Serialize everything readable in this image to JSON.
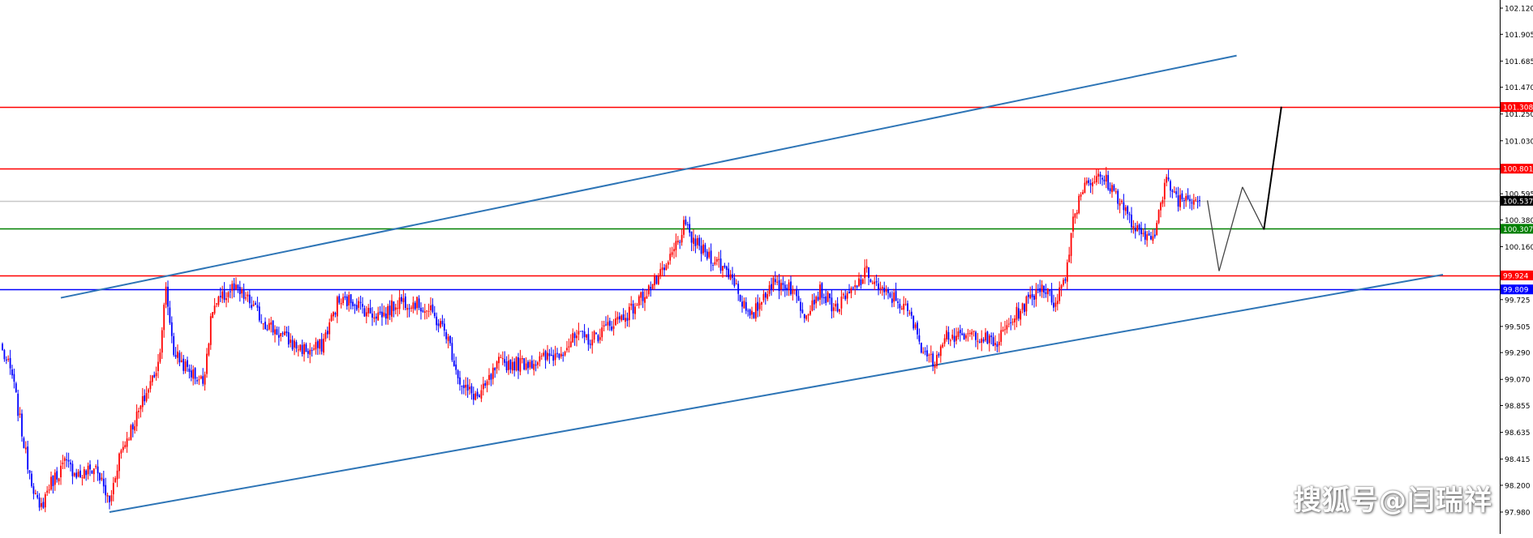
{
  "chart_data": {
    "type": "candlestick",
    "title": "",
    "y_axis": {
      "position": "right",
      "min": 97.86,
      "max": 102.16,
      "tick_labels": [
        "102.120",
        "101.905",
        "101.685",
        "101.470",
        "101.250",
        "101.030",
        "100.815",
        "100.595",
        "100.380",
        "100.160",
        "99.940",
        "99.725",
        "99.505",
        "99.290",
        "99.070",
        "98.855",
        "98.635",
        "98.415",
        "98.200",
        "97.980"
      ]
    },
    "price_markers": [
      {
        "label": "101.308",
        "value": 101.308,
        "color": "#ff0000"
      },
      {
        "label": "100.801",
        "value": 100.801,
        "color": "#ff0000"
      },
      {
        "label": "100.537",
        "value": 100.537,
        "color": "#000000"
      },
      {
        "label": "100.307",
        "value": 100.307,
        "color": "#008000"
      },
      {
        "label": "99.924",
        "value": 99.924,
        "color": "#ff0000"
      },
      {
        "label": "99.809",
        "value": 99.809,
        "color": "#0000ff"
      }
    ],
    "horizontal_lines": [
      {
        "value": 101.308,
        "color": "#ff0000"
      },
      {
        "value": 100.801,
        "color": "#ff0000"
      },
      {
        "value": 100.537,
        "color": "#c8c8c8"
      },
      {
        "value": 100.307,
        "color": "#008000"
      },
      {
        "value": 99.924,
        "color": "#ff0000"
      },
      {
        "value": 99.809,
        "color": "#0000ff"
      }
    ],
    "channel_lines": [
      {
        "name": "upper-channel",
        "color": "#2e75b6",
        "from_bar": 30,
        "from_value": 99.74,
        "to_bar": 634,
        "to_value": 101.73
      },
      {
        "name": "lower-channel",
        "color": "#2e75b6",
        "from_bar": 55,
        "from_value": 97.98,
        "to_bar": 740,
        "to_value": 99.93
      }
    ],
    "projection_path": [
      {
        "bar": 619,
        "value": 100.54
      },
      {
        "bar": 625,
        "value": 99.96
      },
      {
        "bar": 637,
        "value": 100.65
      },
      {
        "bar": 648,
        "value": 100.3
      },
      {
        "bar": 657,
        "value": 101.31
      }
    ],
    "candles": {
      "count": 616,
      "bull_color": "#ff0000",
      "bear_color": "#0000ff",
      "anchors": [
        [
          0,
          99.3
        ],
        [
          5,
          99.1
        ],
        [
          12,
          98.45
        ],
        [
          19,
          97.98
        ],
        [
          24,
          98.2
        ],
        [
          32,
          98.38
        ],
        [
          40,
          98.28
        ],
        [
          48,
          98.35
        ],
        [
          55,
          98.05
        ],
        [
          60,
          98.45
        ],
        [
          70,
          98.8
        ],
        [
          80,
          99.2
        ],
        [
          84,
          99.8
        ],
        [
          88,
          99.3
        ],
        [
          95,
          99.15
        ],
        [
          103,
          99.05
        ],
        [
          108,
          99.65
        ],
        [
          118,
          99.82
        ],
        [
          126,
          99.72
        ],
        [
          134,
          99.55
        ],
        [
          142,
          99.45
        ],
        [
          150,
          99.35
        ],
        [
          158,
          99.3
        ],
        [
          164,
          99.35
        ],
        [
          172,
          99.7
        ],
        [
          180,
          99.72
        ],
        [
          188,
          99.62
        ],
        [
          196,
          99.6
        ],
        [
          204,
          99.72
        ],
        [
          212,
          99.7
        ],
        [
          220,
          99.62
        ],
        [
          228,
          99.45
        ],
        [
          236,
          99.0
        ],
        [
          245,
          98.92
        ],
        [
          255,
          99.2
        ],
        [
          265,
          99.2
        ],
        [
          275,
          99.22
        ],
        [
          285,
          99.28
        ],
        [
          295,
          99.42
        ],
        [
          303,
          99.4
        ],
        [
          312,
          99.52
        ],
        [
          322,
          99.62
        ],
        [
          332,
          99.82
        ],
        [
          340,
          99.95
        ],
        [
          350,
          100.32
        ],
        [
          358,
          100.15
        ],
        [
          366,
          100.05
        ],
        [
          375,
          99.92
        ],
        [
          384,
          99.55
        ],
        [
          394,
          99.85
        ],
        [
          404,
          99.85
        ],
        [
          412,
          99.62
        ],
        [
          420,
          99.8
        ],
        [
          428,
          99.65
        ],
        [
          436,
          99.78
        ],
        [
          444,
          99.95
        ],
        [
          452,
          99.78
        ],
        [
          460,
          99.72
        ],
        [
          466,
          99.6
        ],
        [
          472,
          99.35
        ],
        [
          478,
          99.2
        ],
        [
          484,
          99.45
        ],
        [
          492,
          99.4
        ],
        [
          500,
          99.45
        ],
        [
          510,
          99.35
        ],
        [
          518,
          99.55
        ],
        [
          526,
          99.7
        ],
        [
          534,
          99.85
        ],
        [
          540,
          99.7
        ],
        [
          546,
          99.9
        ],
        [
          550,
          100.4
        ],
        [
          556,
          100.7
        ],
        [
          566,
          100.72
        ],
        [
          574,
          100.55
        ],
        [
          580,
          100.35
        ],
        [
          586,
          100.22
        ],
        [
          592,
          100.3
        ],
        [
          598,
          100.7
        ],
        [
          604,
          100.55
        ],
        [
          610,
          100.58
        ],
        [
          615,
          100.54
        ]
      ]
    }
  },
  "watermark": "搜狐号@闫瑞祥"
}
